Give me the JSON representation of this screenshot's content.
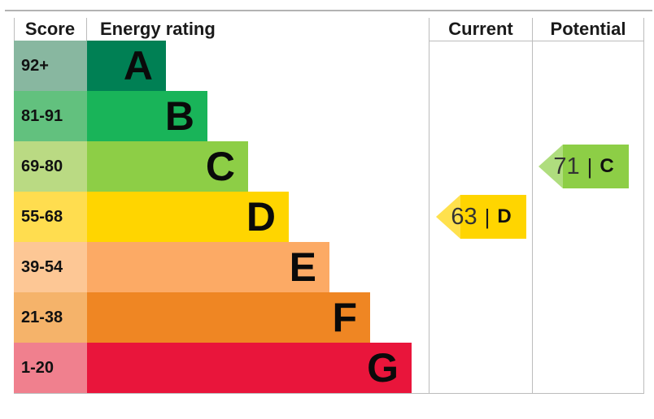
{
  "header": {
    "score": "Score",
    "energy_rating": "Energy rating",
    "current": "Current",
    "potential": "Potential"
  },
  "bands": [
    {
      "score": "92+",
      "letter": "A",
      "color": "#008054",
      "tint": "#88b7a0"
    },
    {
      "score": "81-91",
      "letter": "B",
      "color": "#19b459",
      "tint": "#62c17e"
    },
    {
      "score": "69-80",
      "letter": "C",
      "color": "#8dce46",
      "tint": "#bada83"
    },
    {
      "score": "55-68",
      "letter": "D",
      "color": "#ffd500",
      "tint": "#ffdd4f"
    },
    {
      "score": "39-54",
      "letter": "E",
      "color": "#fcaa65",
      "tint": "#fdc795"
    },
    {
      "score": "21-38",
      "letter": "F",
      "color": "#ef8623",
      "tint": "#f5b36a"
    },
    {
      "score": "1-20",
      "letter": "G",
      "color": "#e9153b",
      "tint": "#f0808e"
    }
  ],
  "current": {
    "label": "63",
    "separator": "|",
    "letter": "D",
    "body_color": "#ffd500",
    "head_color": "#ffe14d"
  },
  "potential": {
    "label": "71",
    "separator": "|",
    "letter": "C",
    "body_color": "#8dce46",
    "head_color": "#afdd7e"
  },
  "chart_data": {
    "type": "bar",
    "orientation": "horizontal",
    "title": "Energy rating",
    "columns": [
      "Score",
      "Energy rating",
      "Current",
      "Potential"
    ],
    "categories": [
      "A",
      "B",
      "C",
      "D",
      "E",
      "F",
      "G"
    ],
    "score_ranges": [
      "92+",
      "81-91",
      "69-80",
      "55-68",
      "39-54",
      "21-38",
      "1-20"
    ],
    "band_colors": [
      "#008054",
      "#19b459",
      "#8dce46",
      "#ffd500",
      "#fcaa65",
      "#ef8623",
      "#e9153b"
    ],
    "markers": [
      {
        "name": "Current",
        "value": 63,
        "band": "D",
        "color": "#ffd500"
      },
      {
        "name": "Potential",
        "value": 71,
        "band": "C",
        "color": "#8dce46"
      }
    ],
    "legend_position": "none",
    "grid": false
  }
}
